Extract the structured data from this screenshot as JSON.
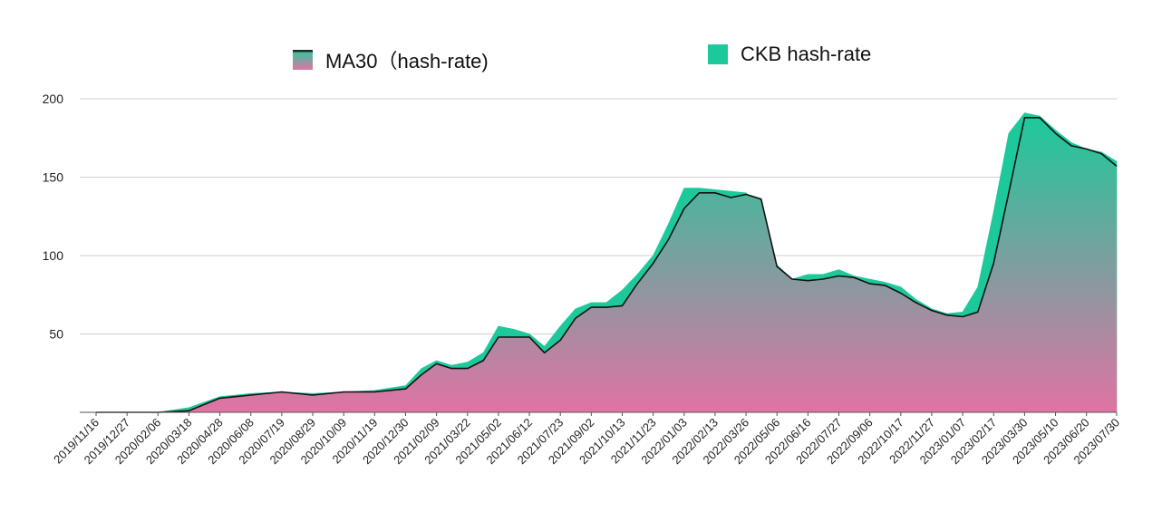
{
  "chart_data": {
    "type": "area",
    "title": "",
    "xlabel": "",
    "ylabel": "",
    "ylim": [
      0,
      200
    ],
    "grid": true,
    "legend_position": "top",
    "y_ticks": [
      "200",
      "150",
      "100",
      "50"
    ],
    "x_ticks": [
      "2019/11/16",
      "2019/12/27",
      "2020/02/06",
      "2020/03/18",
      "2020/04/28",
      "2020/06/08",
      "2020/07/19",
      "2020/08/29",
      "2020/10/09",
      "2020/11/19",
      "2020/12/30",
      "2021/02/09",
      "2021/03/22",
      "2021/05/02",
      "2021/06/12",
      "2021/07/23",
      "2021/09/02",
      "2021/10/13",
      "2021/11/23",
      "2022/01/03",
      "2022/02/13",
      "2022/03/26",
      "2022/05/06",
      "2022/06/16",
      "2022/07/27",
      "2022/09/06",
      "2022/10/17",
      "2022/11/27",
      "2023/01/07",
      "2023/02/17",
      "2023/03/30",
      "2023/05/10",
      "2023/06/20",
      "2023/07/30"
    ],
    "series": [
      {
        "name": "MA30（hash-rate)",
        "color_top": "#1dc99a",
        "color_bottom": "#e073a3",
        "line_color": "#111111",
        "x": [
          "2019/11/16",
          "2019/12/27",
          "2020/02/06",
          "2020/03/18",
          "2020/04/28",
          "2020/06/08",
          "2020/07/19",
          "2020/08/29",
          "2020/10/09",
          "2020/11/19",
          "2020/12/30",
          "2021/01/20",
          "2021/02/09",
          "2021/03/01",
          "2021/03/22",
          "2021/04/12",
          "2021/05/02",
          "2021/05/22",
          "2021/06/12",
          "2021/07/02",
          "2021/07/23",
          "2021/08/12",
          "2021/09/02",
          "2021/09/22",
          "2021/10/13",
          "2021/11/02",
          "2021/11/23",
          "2021/12/13",
          "2022/01/03",
          "2022/01/23",
          "2022/02/13",
          "2022/03/06",
          "2022/03/26",
          "2022/04/15",
          "2022/05/06",
          "2022/05/26",
          "2022/06/16",
          "2022/07/06",
          "2022/07/27",
          "2022/08/16",
          "2022/09/06",
          "2022/09/26",
          "2022/10/17",
          "2022/11/06",
          "2022/11/27",
          "2022/12/17",
          "2023/01/07",
          "2023/01/27",
          "2023/02/17",
          "2023/03/09",
          "2023/03/30",
          "2023/04/19",
          "2023/05/10",
          "2023/05/31",
          "2023/06/20",
          "2023/07/10",
          "2023/07/30"
        ],
        "values": [
          0,
          0,
          0,
          1,
          9,
          11,
          13,
          11,
          13,
          13,
          15,
          24,
          31,
          28,
          28,
          33,
          48,
          48,
          48,
          38,
          46,
          60,
          67,
          67,
          68,
          82,
          95,
          110,
          130,
          140,
          140,
          137,
          139,
          136,
          93,
          85,
          84,
          85,
          87,
          86,
          82,
          81,
          76,
          70,
          65,
          62,
          61,
          64,
          95,
          140,
          188,
          188,
          178,
          170,
          168,
          165,
          157
        ]
      },
      {
        "name": "CKB hash-rate",
        "color": "#1dc99a",
        "x": [
          "2019/11/16",
          "2019/12/27",
          "2020/02/06",
          "2020/03/18",
          "2020/04/28",
          "2020/06/08",
          "2020/07/19",
          "2020/08/29",
          "2020/10/09",
          "2020/11/19",
          "2020/12/30",
          "2021/01/20",
          "2021/02/09",
          "2021/03/01",
          "2021/03/22",
          "2021/04/12",
          "2021/05/02",
          "2021/05/22",
          "2021/06/12",
          "2021/07/02",
          "2021/07/23",
          "2021/08/12",
          "2021/09/02",
          "2021/09/22",
          "2021/10/13",
          "2021/11/02",
          "2021/11/23",
          "2021/12/13",
          "2022/01/03",
          "2022/01/23",
          "2022/02/13",
          "2022/03/06",
          "2022/03/26",
          "2022/04/15",
          "2022/05/06",
          "2022/05/26",
          "2022/06/16",
          "2022/07/06",
          "2022/07/27",
          "2022/08/16",
          "2022/09/06",
          "2022/09/26",
          "2022/10/17",
          "2022/11/06",
          "2022/11/27",
          "2022/12/17",
          "2023/01/07",
          "2023/01/27",
          "2023/02/17",
          "2023/03/09",
          "2023/03/30",
          "2023/04/19",
          "2023/05/10",
          "2023/05/31",
          "2023/06/20",
          "2023/07/10",
          "2023/07/30"
        ],
        "values": [
          0,
          0,
          0,
          3,
          10,
          12,
          13,
          12,
          13,
          14,
          17,
          28,
          33,
          30,
          32,
          38,
          55,
          53,
          50,
          42,
          55,
          66,
          70,
          70,
          78,
          88,
          100,
          120,
          143,
          143,
          142,
          141,
          140,
          128,
          94,
          85,
          88,
          88,
          91,
          87,
          85,
          83,
          80,
          72,
          66,
          63,
          64,
          80,
          128,
          178,
          191,
          189,
          180,
          172,
          168,
          166,
          160
        ]
      }
    ]
  },
  "legend": {
    "ma30_label": "MA30（hash-rate)",
    "ckb_label": "CKB hash-rate",
    "ma30_icon": "gradient-line-swatch-icon",
    "ckb_icon": "square-swatch-icon"
  }
}
